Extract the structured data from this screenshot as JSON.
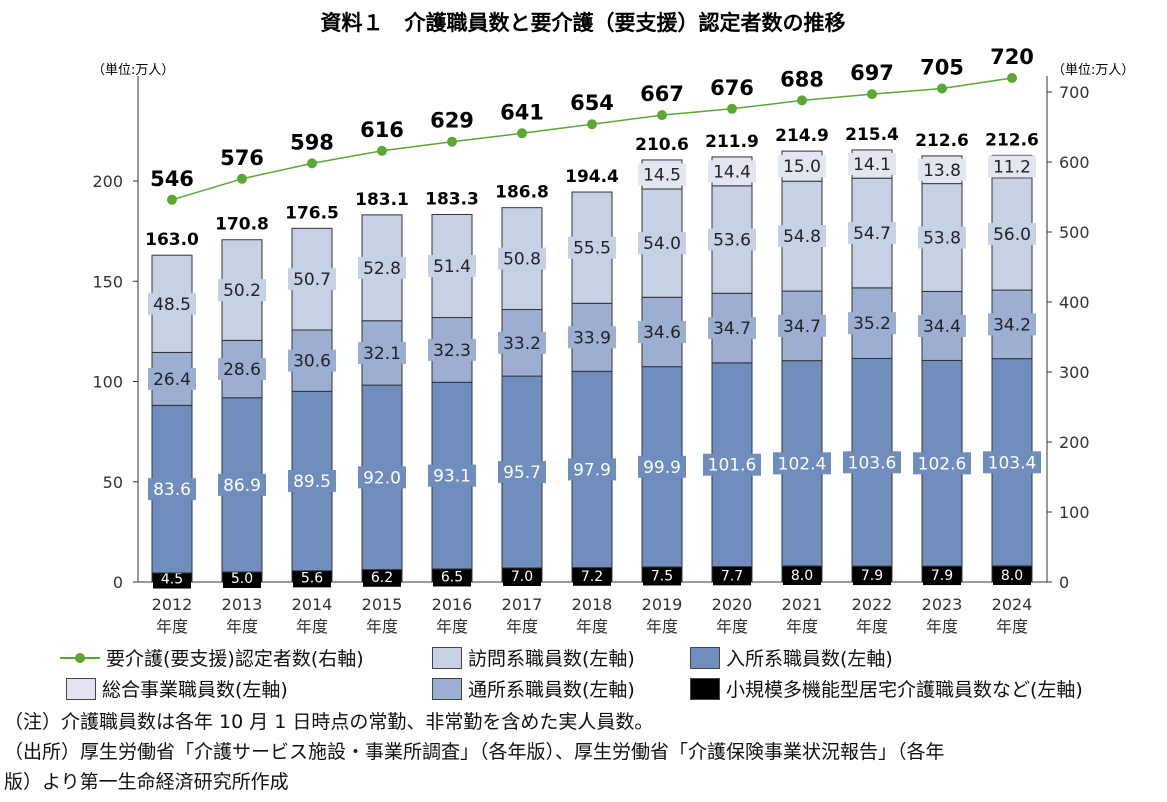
{
  "chart_data": {
    "type": "bar",
    "title": "資料１　介護職員数と要介護（要支援）認定者数の推移",
    "left_unit": "（単位:万人）",
    "right_unit": "（単位:万人）",
    "ylim_left": [
      0,
      200
    ],
    "ylim_right": [
      0,
      700
    ],
    "left_ticks": [
      0,
      50,
      100,
      150,
      200
    ],
    "right_ticks": [
      0,
      100,
      200,
      300,
      400,
      500,
      600,
      700
    ],
    "categories": [
      "2012",
      "2013",
      "2014",
      "2015",
      "2016",
      "2017",
      "2018",
      "2019",
      "2020",
      "2021",
      "2022",
      "2023",
      "2024"
    ],
    "category_suffix": "年度",
    "series": [
      {
        "name": "小規模多機能型居宅介護職員数など(左軸)",
        "color": "#000000",
        "label_color": "#ffffff",
        "values": [
          4.5,
          5.0,
          5.6,
          6.2,
          6.5,
          7.0,
          7.2,
          7.5,
          7.7,
          8.0,
          7.9,
          7.9,
          8.0
        ]
      },
      {
        "name": "入所系職員数(左軸)",
        "color": "#6f8dbd",
        "label_color": "#ffffff",
        "values": [
          83.6,
          86.9,
          89.5,
          92.0,
          93.1,
          95.7,
          97.9,
          99.9,
          101.6,
          102.4,
          103.6,
          102.6,
          103.4
        ]
      },
      {
        "name": "通所系職員数(左軸)",
        "color": "#9cafd3",
        "label_color": "#222222",
        "values": [
          26.4,
          28.6,
          30.6,
          32.1,
          32.3,
          33.2,
          33.9,
          34.6,
          34.7,
          34.7,
          35.2,
          34.4,
          34.2
        ]
      },
      {
        "name": "訪問系職員数(左軸)",
        "color": "#c7d1e6",
        "label_color": "#222222",
        "values": [
          48.5,
          50.2,
          50.7,
          52.8,
          51.4,
          50.8,
          55.5,
          54.0,
          53.6,
          54.8,
          54.7,
          53.8,
          56.0
        ]
      },
      {
        "name": "総合事業職員数(左軸)",
        "color": "#e1e6f1",
        "label_color": "#222222",
        "values": [
          null,
          null,
          null,
          null,
          null,
          null,
          null,
          14.5,
          14.4,
          15.0,
          14.1,
          13.8,
          11.2
        ]
      }
    ],
    "totals": [
      "163.0",
      "170.8",
      "176.5",
      "183.1",
      "183.3",
      "186.8",
      "194.4",
      "210.6",
      "211.9",
      "214.9",
      "215.4",
      "212.6",
      "212.6"
    ],
    "line": {
      "name": "要介護(要支援)認定者数(右軸)",
      "color": "#5aa832",
      "axis": "right",
      "values": [
        546,
        576,
        598,
        616,
        629,
        641,
        654,
        667,
        676,
        688,
        697,
        705,
        720
      ]
    }
  },
  "notes": [
    "（注）介護職員数は各年 10 月 1 日時点の常勤、非常勤を含めた実人員数。",
    "（出所）厚生労働省「介護サービス施設・事業所調査」（各年版）、厚生労働省「介護保険事業状況報告」（各年",
    "版）より第一生命経済研究所作成"
  ]
}
